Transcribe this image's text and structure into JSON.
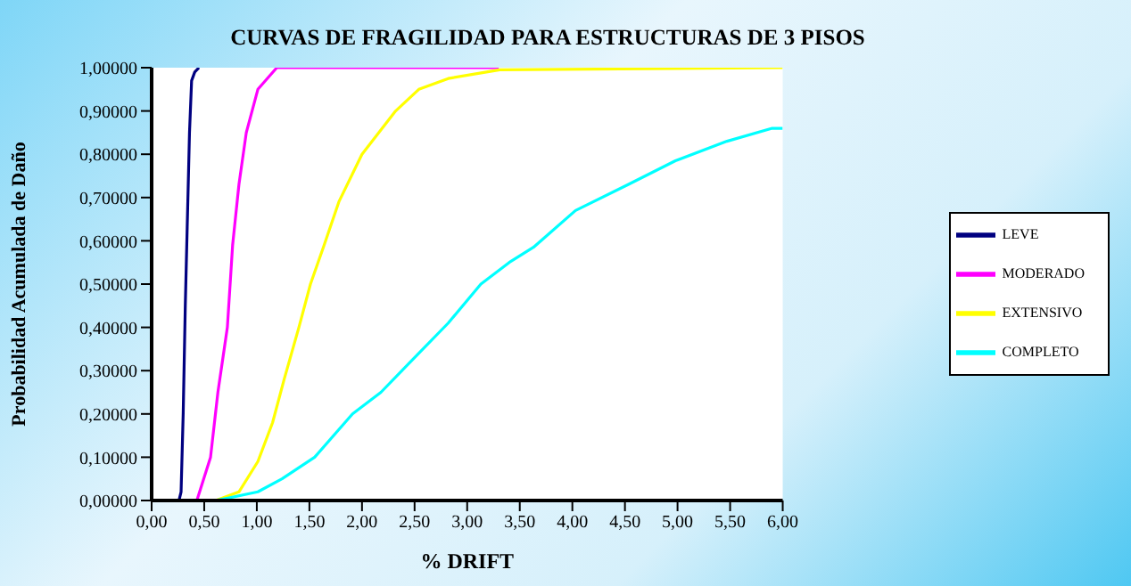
{
  "chart_data": {
    "type": "line",
    "title": "CURVAS DE FRAGILIDAD PARA ESTRUCTURAS DE 3 PISOS",
    "xlabel": "% DRIFT",
    "ylabel": "Probabilidad Acumulada de Daño",
    "xlim": [
      0,
      6
    ],
    "xticks": [
      {
        "value": 0,
        "label": "0,00"
      },
      {
        "value": 0.5,
        "label": "0,50"
      },
      {
        "value": 1,
        "label": "1,00"
      },
      {
        "value": 1.5,
        "label": "1,50"
      },
      {
        "value": 2,
        "label": "2,00"
      },
      {
        "value": 2.5,
        "label": "2,50"
      },
      {
        "value": 3,
        "label": "3,00"
      },
      {
        "value": 3.5,
        "label": "3,50"
      },
      {
        "value": 4,
        "label": "4,00"
      },
      {
        "value": 4.5,
        "label": "4,50"
      },
      {
        "value": 5,
        "label": "5,00"
      },
      {
        "value": 5.5,
        "label": "5,50"
      },
      {
        "value": 6,
        "label": "6,00"
      }
    ],
    "ylim": [
      0,
      1
    ],
    "yticks": [
      {
        "value": 0,
        "label": "0,00000"
      },
      {
        "value": 0.1,
        "label": "0,10000"
      },
      {
        "value": 0.2,
        "label": "0,20000"
      },
      {
        "value": 0.3,
        "label": "0,30000"
      },
      {
        "value": 0.4,
        "label": "0,40000"
      },
      {
        "value": 0.5,
        "label": "0,50000"
      },
      {
        "value": 0.6,
        "label": "0,60000"
      },
      {
        "value": 0.7,
        "label": "0,70000"
      },
      {
        "value": 0.8,
        "label": "0,80000"
      },
      {
        "value": 0.9,
        "label": "0,90000"
      },
      {
        "value": 1,
        "label": "1,00000"
      }
    ],
    "grid": false,
    "legend": "right",
    "series": [
      {
        "name": "LEVE",
        "color": "#000080",
        "x": [
          0.26,
          0.28,
          0.3,
          0.32,
          0.34,
          0.36,
          0.38,
          0.41,
          0.45
        ],
        "values": [
          0,
          0.02,
          0.2,
          0.45,
          0.65,
          0.85,
          0.97,
          0.99,
          1
        ]
      },
      {
        "name": "MODERADO",
        "color": "#ff00ff",
        "x": [
          0.43,
          0.56,
          0.63,
          0.72,
          0.77,
          0.83,
          0.9,
          1.01,
          1.19,
          3.3
        ],
        "values": [
          0,
          0.1,
          0.25,
          0.4,
          0.59,
          0.73,
          0.85,
          0.95,
          1,
          1
        ]
      },
      {
        "name": "EXTENSIVO",
        "color": "#ffff00",
        "x": [
          0.61,
          0.83,
          1.01,
          1.15,
          1.26,
          1.4,
          1.51,
          1.64,
          1.78,
          2,
          2.32,
          2.54,
          2.82,
          3.31,
          6
        ],
        "values": [
          0,
          0.02,
          0.09,
          0.18,
          0.28,
          0.4,
          0.5,
          0.59,
          0.69,
          0.8,
          0.9,
          0.95,
          0.975,
          0.995,
          1
        ]
      },
      {
        "name": "COMPLETO",
        "color": "#00ffff",
        "x": [
          0.61,
          1.01,
          1.24,
          1.55,
          1.91,
          2.18,
          2.46,
          2.82,
          3.13,
          3.4,
          3.63,
          4.03,
          4.53,
          4.98,
          5.47,
          5.9,
          6
        ],
        "values": [
          0,
          0.02,
          0.05,
          0.1,
          0.2,
          0.25,
          0.32,
          0.41,
          0.5,
          0.55,
          0.585,
          0.67,
          0.73,
          0.785,
          0.83,
          0.86,
          0.86
        ]
      }
    ]
  }
}
